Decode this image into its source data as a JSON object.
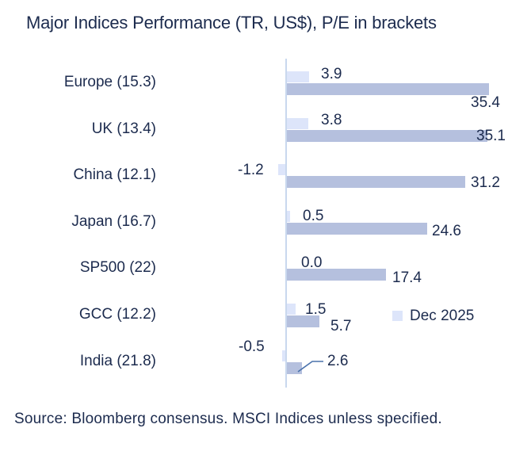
{
  "title": "Major Indices Performance (TR, US$), P/E in brackets",
  "source": "Source: Bloomberg consensus. MSCI Indices unless specified.",
  "legend": {
    "label": "Dec 2025"
  },
  "colors": {
    "text": "#1c2b4e",
    "forecast_bar": "#dde5fa",
    "consensus_bar": "#b5c0de",
    "axis_line": "#c9d8ee",
    "leader_line": "#4a72ac",
    "background": "#ffffff"
  },
  "chart_data": {
    "type": "bar",
    "orientation": "horizontal",
    "title": "Major Indices Performance (TR, US$), P/E in brackets",
    "categories": [
      "Europe (15.3)",
      "UK (13.4)",
      "China (12.1)",
      "Japan (16.7)",
      "SP500 (22)",
      "GCC (12.2)",
      "India (21.8)"
    ],
    "series": [
      {
        "name": "Dec 2025",
        "color": "#dde5fa",
        "values": [
          3.9,
          3.8,
          -1.2,
          0.5,
          0.0,
          1.5,
          -0.5
        ]
      },
      {
        "name": "",
        "color": "#b5c0de",
        "values": [
          35.4,
          35.1,
          31.2,
          24.6,
          17.4,
          5.7,
          2.6
        ]
      }
    ],
    "value_labels": true,
    "value_label_decimals": 1,
    "baseline_at_zero": true,
    "x_axis_ticks_visible": false,
    "grid": false,
    "legend_position": "middle-right",
    "legend_entries_visible": [
      "Dec 2025"
    ],
    "annotations": [
      {
        "category": "India (21.8)",
        "series": 2,
        "value": 2.6,
        "type": "leader-line"
      }
    ]
  }
}
